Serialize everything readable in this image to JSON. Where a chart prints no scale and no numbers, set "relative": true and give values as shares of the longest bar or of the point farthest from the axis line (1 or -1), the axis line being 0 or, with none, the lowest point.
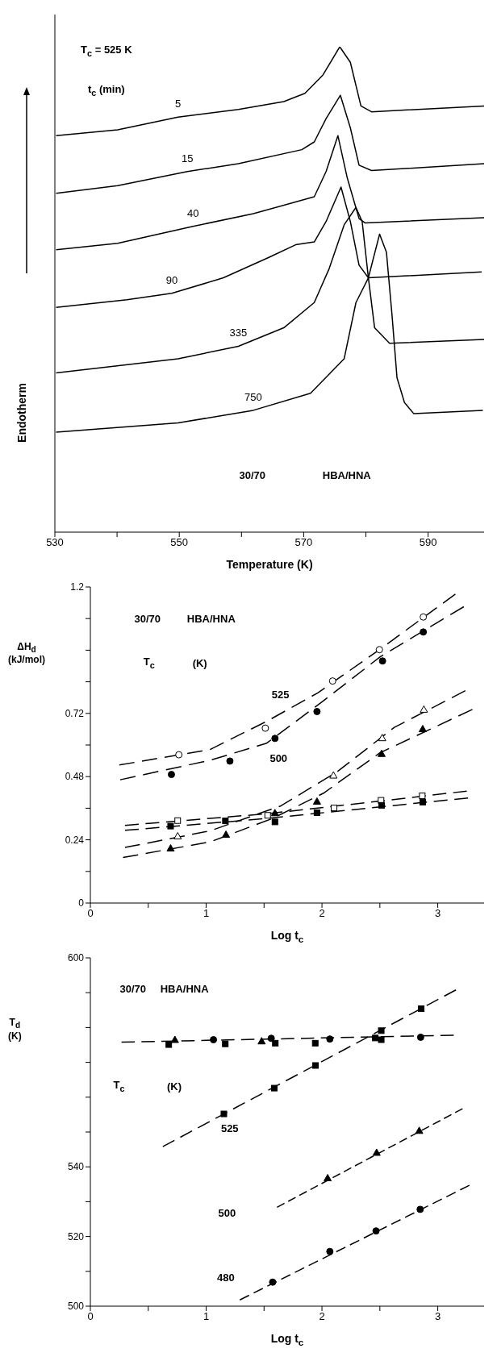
{
  "chart_data": [
    {
      "type": "line",
      "relative": true,
      "xlabel": "Temperature (K)",
      "ylabel": "Endotherm",
      "xlim": [
        530,
        599
      ],
      "xticks": [
        530,
        {
          "value": 540,
          "label": null
        },
        550,
        {
          "value": 560,
          "label": null
        },
        570,
        {
          "value": 580,
          "label": null
        },
        590
      ],
      "marker": "none",
      "line_style": "solid",
      "annotations": [
        "T$_{c}$ = 525 K",
        "t$_{c}$ (min)",
        "30/70",
        "HBA/HNA"
      ],
      "series": [
        {
          "name": "5",
          "color": "#000000",
          "x": [
            530.2,
            540.1,
            549.8,
            559.5,
            566.8,
            570.2,
            573.1,
            575.8,
            577.5,
            579.2,
            580.9,
            599
          ],
          "values": [
            0.817,
            0.829,
            0.855,
            0.871,
            0.887,
            0.904,
            0.942,
            1.0,
            0.968,
            0.878,
            0.866,
            0.878
          ]
        },
        {
          "name": "15",
          "color": "#000000",
          "x": [
            530.2,
            540.1,
            551.3,
            559.5,
            569.7,
            571.7,
            573.6,
            575.9,
            577.5,
            578.9,
            580.9,
            599
          ],
          "values": [
            0.698,
            0.714,
            0.743,
            0.759,
            0.788,
            0.804,
            0.852,
            0.9,
            0.833,
            0.756,
            0.745,
            0.759
          ]
        },
        {
          "name": "40",
          "color": "#000000",
          "x": [
            530.2,
            540.1,
            552.2,
            561.9,
            571.7,
            573.6,
            575.5,
            577,
            578.9,
            579.9,
            599
          ],
          "values": [
            0.582,
            0.595,
            0.63,
            0.656,
            0.691,
            0.743,
            0.817,
            0.73,
            0.646,
            0.637,
            0.648
          ]
        },
        {
          "name": "90",
          "color": "#000000",
          "x": [
            530.2,
            541.6,
            548.8,
            557.1,
            564.4,
            568.7,
            571.7,
            573.6,
            576,
            577.5,
            578.9,
            580.4,
            598.6
          ],
          "values": [
            0.463,
            0.479,
            0.492,
            0.524,
            0.566,
            0.592,
            0.598,
            0.64,
            0.711,
            0.64,
            0.55,
            0.524,
            0.536
          ]
        },
        {
          "name": "335",
          "color": "#000000",
          "x": [
            530.2,
            549.8,
            559.5,
            566.8,
            571.7,
            574.1,
            576.5,
            578.4,
            579.4,
            580.4,
            581.4,
            583.8,
            599
          ],
          "values": [
            0.328,
            0.357,
            0.383,
            0.421,
            0.473,
            0.543,
            0.633,
            0.669,
            0.64,
            0.524,
            0.421,
            0.389,
            0.397
          ]
        },
        {
          "name": "750",
          "color": "#000000",
          "x": [
            530.2,
            549.8,
            561.9,
            571.1,
            576.5,
            578.4,
            580.4,
            582.2,
            583.3,
            584.2,
            585,
            586.2,
            587.7,
            598.8
          ],
          "values": [
            0.206,
            0.225,
            0.251,
            0.286,
            0.357,
            0.473,
            0.524,
            0.614,
            0.577,
            0.447,
            0.318,
            0.267,
            0.244,
            0.251
          ]
        }
      ]
    },
    {
      "type": "scatter",
      "xlabel": "Log t$_{c}$",
      "ylabel": "ΔH$_{d}$ (kJ/mol)",
      "xlim": [
        0,
        3.4
      ],
      "xticks": [
        0,
        {
          "value": 0.5,
          "label": null
        },
        1,
        {
          "value": 1.5,
          "label": null
        },
        2,
        {
          "value": 2.5,
          "label": null
        },
        3
      ],
      "ylim": [
        0,
        1.2
      ],
      "yticks": [
        0,
        {
          "value": 0.12,
          "label": null
        },
        0.24,
        {
          "value": 0.36,
          "label": null
        },
        0.48,
        {
          "value": 0.6,
          "label": null
        },
        0.72,
        {
          "value": 0.84,
          "label": null
        },
        {
          "value": 0.96,
          "label": null
        },
        {
          "value": 1.08,
          "label": null
        },
        1.2
      ],
      "annotations": [
        "30/70",
        "HBA/HNA",
        "T$_{c}$",
        "(K)",
        "525",
        "500"
      ],
      "series": [
        {
          "marker": "circle",
          "color": "#ffffff",
          "x": [
            0.764,
            1.511,
            2.092,
            2.496,
            2.875
          ],
          "values": [
            0.563,
            0.664,
            0.843,
            0.962,
            1.086
          ]
        },
        {
          "marker": "circle",
          "color": "#000000",
          "x": [
            0.7,
            1.205,
            1.594,
            1.957,
            2.523,
            2.875
          ],
          "values": [
            0.488,
            0.539,
            0.625,
            0.727,
            0.919,
            1.029
          ]
        },
        {
          "marker": "triangle",
          "color": "#ffffff",
          "x": [
            0.754,
            2.099,
            2.52,
            2.88
          ],
          "values": [
            0.254,
            0.485,
            0.627,
            0.735
          ]
        },
        {
          "marker": "triangle",
          "color": "#000000",
          "x": [
            0.693,
            1.171,
            1.594,
            1.957,
            2.515,
            2.87
          ],
          "values": [
            0.208,
            0.26,
            0.342,
            0.386,
            0.567,
            0.661
          ]
        },
        {
          "marker": "square",
          "color": "#ffffff",
          "x": [
            0.754,
            1.531,
            2.104,
            2.51,
            2.866
          ],
          "values": [
            0.313,
            0.333,
            0.361,
            0.39,
            0.407
          ]
        },
        {
          "marker": "square",
          "color": "#000000",
          "x": [
            0.693,
            1.166,
            1.594,
            1.957,
            2.515,
            2.87
          ],
          "values": [
            0.292,
            0.312,
            0.308,
            0.343,
            0.371,
            0.383
          ]
        },
        {
          "type": "line",
          "line_style": "dashed",
          "color": "#000000",
          "x": [
            0.25,
            1.034,
            1.523,
            1.964,
            2.503,
            3.152
          ],
          "values": [
            0.524,
            0.583,
            0.69,
            0.798,
            0.964,
            1.173
          ]
        },
        {
          "type": "line",
          "line_style": "dashed",
          "color": "#000000",
          "x": [
            0.257,
            1.034,
            1.523,
            2.013,
            2.503,
            3.225
          ],
          "values": [
            0.468,
            0.542,
            0.607,
            0.768,
            0.935,
            1.125
          ]
        },
        {
          "type": "line",
          "line_style": "dashed",
          "color": "#000000",
          "x": [
            0.299,
            1.034,
            1.646,
            2.136,
            2.625,
            3.238
          ],
          "values": [
            0.211,
            0.274,
            0.369,
            0.5,
            0.667,
            0.806
          ]
        },
        {
          "type": "line",
          "line_style": "dashed",
          "color": "#000000",
          "x": [
            0.282,
            1.034,
            1.572,
            2.013,
            2.503,
            3.299
          ],
          "values": [
            0.173,
            0.232,
            0.321,
            0.417,
            0.571,
            0.735
          ]
        },
        {
          "type": "line",
          "line_style": "dashed",
          "color": "#000000",
          "x": [
            0.299,
            1.523,
            2.503,
            3.25
          ],
          "values": [
            0.295,
            0.339,
            0.387,
            0.425
          ]
        },
        {
          "type": "line",
          "line_style": "dashed",
          "color": "#000000",
          "x": [
            0.299,
            1.523,
            2.503,
            3.262
          ],
          "values": [
            0.276,
            0.321,
            0.365,
            0.399
          ]
        }
      ]
    },
    {
      "type": "scatter",
      "xlabel": "Log t$_{c}$",
      "ylabel": "T$_{d}$ (K)",
      "xlim": [
        0,
        3.4
      ],
      "xticks": [
        0,
        {
          "value": 0.5,
          "label": null
        },
        1,
        {
          "value": 1.5,
          "label": null
        },
        2,
        {
          "value": 2.5,
          "label": null
        },
        3
      ],
      "ylim": [
        500,
        600
      ],
      "yticks": [
        500,
        {
          "value": 510,
          "label": null
        },
        520,
        {
          "value": 530,
          "label": null
        },
        540,
        {
          "value": 550,
          "label": null
        },
        {
          "value": 560,
          "label": null
        },
        {
          "value": 570,
          "label": null
        },
        {
          "value": 580,
          "label": null
        },
        {
          "value": 590,
          "label": null
        },
        600
      ],
      "annotations": [
        "30/70",
        "HBA/HNA",
        "T$_{c}$",
        "(K)",
        "525",
        "500",
        "480"
      ],
      "series": [
        {
          "marker": "square",
          "color": "#000000",
          "x": [
            0.677,
            1.165,
            1.597,
            1.942,
            2.46,
            2.512,
            1.153,
            1.588,
            1.944,
            2.512,
            2.857
          ],
          "values": [
            575.1,
            575.3,
            575.5,
            575.5,
            577,
            576.5,
            555.2,
            562.6,
            569.1,
            579.1,
            585.4
          ]
        },
        {
          "marker": "triangle",
          "color": "#000000",
          "x": [
            0.73,
            1.479,
            2.049,
            2.472,
            2.84
          ],
          "values": [
            576.5,
            576.1,
            536.8,
            544.1,
            550.4
          ]
        },
        {
          "marker": "circle",
          "color": "#000000",
          "x": [
            1.063,
            1.562,
            2.068,
            2.852,
            1.574,
            2.068,
            2.467,
            2.848
          ],
          "values": [
            576.5,
            576.9,
            576.7,
            577.2,
            506.9,
            515.7,
            521.6,
            527.8
          ]
        },
        {
          "type": "line",
          "line_style": "dashed",
          "color": "#000000",
          "x": [
            0.269,
            3.138
          ],
          "values": [
            575.8,
            577.8
          ]
        },
        {
          "type": "line",
          "line_style": "dashed",
          "color": "#000000",
          "x": [
            0.625,
            3.157
          ],
          "values": [
            545.8,
            590.8
          ]
        },
        {
          "type": "line",
          "line_style": "dashed",
          "color": "#000000",
          "x": [
            1.612,
            3.214
          ],
          "values": [
            528.4,
            556.7
          ]
        },
        {
          "type": "line",
          "line_style": "dashed",
          "color": "#000000",
          "x": [
            1.291,
            3.273
          ],
          "values": [
            501.8,
            534.7
          ]
        }
      ]
    }
  ]
}
